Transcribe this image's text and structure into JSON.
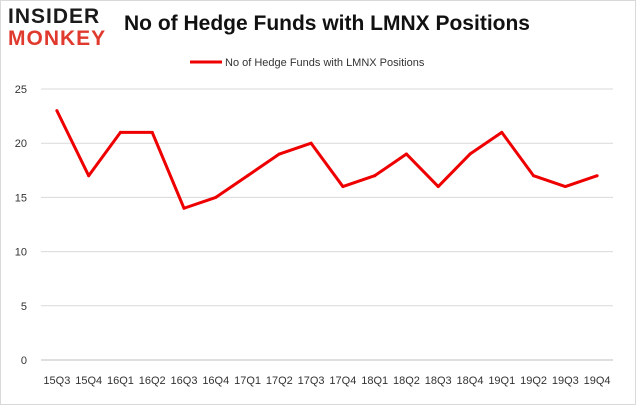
{
  "logo": {
    "line1": "INSIDER",
    "line2": "MONKEY"
  },
  "chart_data": {
    "type": "line",
    "title": "No of Hedge Funds with LMNX Positions",
    "categories": [
      "15Q3",
      "15Q4",
      "16Q1",
      "16Q2",
      "16Q3",
      "16Q4",
      "17Q1",
      "17Q2",
      "17Q3",
      "17Q4",
      "18Q1",
      "18Q2",
      "18Q3",
      "18Q4",
      "19Q1",
      "19Q2",
      "19Q3",
      "19Q4"
    ],
    "series": [
      {
        "name": "No of Hedge Funds with LMNX Positions",
        "values": [
          23,
          17,
          21,
          21,
          14,
          15,
          17,
          19,
          20,
          16,
          17,
          19,
          16,
          19,
          21,
          17,
          16,
          17
        ],
        "color": "#ee0000"
      }
    ],
    "ylim": [
      0,
      25
    ],
    "yticks": [
      "0",
      "5",
      "10",
      "15",
      "20",
      "25"
    ],
    "grid": true,
    "legend": "top-center"
  }
}
